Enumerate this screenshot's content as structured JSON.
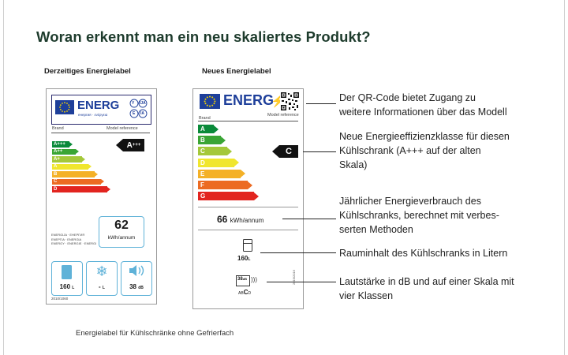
{
  "title": "Woran erkennt man ein neu skaliertes Produkt?",
  "current_label": {
    "heading": "Derzeitiges Energielabel",
    "logo_text": "ENERG",
    "logo_sub": "енергия · ενέργεια",
    "ie_letters": [
      "Y",
      "IJA",
      "E",
      "IA"
    ],
    "brand": "Brand",
    "model": "Model reference",
    "classes": [
      "A+++",
      "A++",
      "A+",
      "A",
      "B",
      "C",
      "D"
    ],
    "class_colors": [
      "#0a8a3a",
      "#3aa535",
      "#a4c83a",
      "#f0e62e",
      "#f4b127",
      "#ec6b22",
      "#e2241f"
    ],
    "rating": "A",
    "rating_sup": "+++",
    "energy_value": "62",
    "energy_unit": "kWh/annum",
    "energy_words": "ENERGIJA · ЕНЕРГИЯ\nENEPΓIA · ENERGIA\nENERGY · ENERGIE · ENERGI",
    "volume_value": "160",
    "volume_unit": "L",
    "freezer_value": "-",
    "freezer_unit": "L",
    "noise_value": "38",
    "noise_unit": "dB",
    "regulation": "2010/1060"
  },
  "new_label": {
    "heading": "Neues Energielabel",
    "logo_text": "ENERG",
    "brand": "Brand",
    "model": "Model reference",
    "classes": [
      "A",
      "B",
      "C",
      "D",
      "E",
      "F",
      "G"
    ],
    "class_colors": [
      "#0a8a3a",
      "#3aa535",
      "#a4c83a",
      "#f0e62e",
      "#f4b127",
      "#ec6b22",
      "#e2241f"
    ],
    "rating": "C",
    "energy_value": "66",
    "energy_unit": "kWh/annum",
    "volume_value": "160",
    "volume_unit": "L",
    "noise_value": "38",
    "noise_unit": "dB",
    "noise_class_a": "A",
    "noise_class_b": "B",
    "noise_class_c": "C",
    "noise_class_d": "D",
    "side_code": "2019/2016"
  },
  "annotations": [
    {
      "line1": "Der QR-Code bietet Zugang zu",
      "line2": "weitere Informationen über das Modell"
    },
    {
      "line1": "Neue Energieeffizienzklasse für diesen",
      "line2": "Kühlschrank (A+++ auf der alten",
      "line3": "Skala)"
    },
    {
      "line1": "Jährlicher Energieverbrauch des",
      "line2": "Kühlschranks, berechnet mit verbes-",
      "line3": "serten Methoden"
    },
    {
      "line1": "Rauminhalt des Kühlschranks in Litern"
    },
    {
      "line1": "Lautstärke in dB und auf einer Skala mit",
      "line2": "vier Klassen"
    }
  ],
  "caption": "Energielabel für Kühlschränke ohne Gefrierfach"
}
